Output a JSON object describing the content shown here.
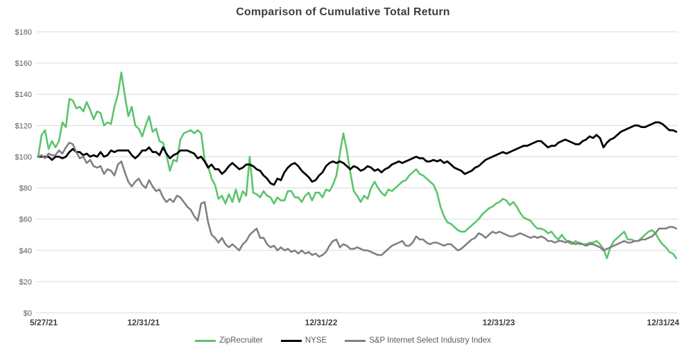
{
  "chart_data": {
    "type": "line",
    "title": "Comparison of Cumulative Total Return",
    "xlabel": "",
    "ylabel": "",
    "ylim": [
      0,
      180
    ],
    "grid": "horizontal",
    "legend_position": "bottom",
    "x_spacing": "uniform time axis, values sampled evenly from 5/27/21 through 12/31/24",
    "y_ticks": [
      {
        "value": 0,
        "label": "$0"
      },
      {
        "value": 20,
        "label": "$20"
      },
      {
        "value": 40,
        "label": "$40"
      },
      {
        "value": 60,
        "label": "$60"
      },
      {
        "value": 80,
        "label": "$80"
      },
      {
        "value": 100,
        "label": "$100"
      },
      {
        "value": 120,
        "label": "$120"
      },
      {
        "value": 140,
        "label": "$140"
      },
      {
        "value": 160,
        "label": "$160"
      },
      {
        "value": 180,
        "label": "$180"
      }
    ],
    "x_ticks": [
      {
        "pos": 0.0,
        "label": "5/27/21"
      },
      {
        "pos": 0.1652,
        "label": "12/31/21"
      },
      {
        "pos": 0.4435,
        "label": "12/31/22"
      },
      {
        "pos": 0.7217,
        "label": "12/31/23"
      },
      {
        "pos": 1.0,
        "label": "12/31/24"
      }
    ],
    "series": [
      {
        "name": "ZipRecruiter",
        "color": "#5BC46A",
        "values": [
          100,
          114,
          117,
          105,
          110,
          106,
          110,
          122,
          119,
          137,
          136,
          131,
          132,
          129,
          135,
          130,
          124,
          129,
          128,
          120,
          122,
          121,
          132,
          140,
          154,
          139,
          126,
          132,
          120,
          118,
          113,
          120,
          126,
          116,
          118,
          110,
          109,
          101,
          91,
          98,
          97,
          111,
          115,
          116,
          117,
          115,
          117,
          115,
          98,
          94,
          86,
          82,
          73,
          75,
          70,
          76,
          71,
          79,
          71,
          78,
          75,
          100,
          77,
          76,
          74,
          78,
          75,
          74,
          70,
          74,
          72,
          72,
          78,
          78,
          74,
          74,
          71,
          75,
          77,
          72,
          77,
          77,
          74,
          79,
          78,
          82,
          88,
          102,
          115,
          104,
          90,
          78,
          75,
          71,
          75,
          73,
          80,
          84,
          80,
          77,
          75,
          79,
          78,
          80,
          82,
          84,
          85,
          88,
          90,
          92,
          89,
          88,
          86,
          84,
          82,
          77,
          68,
          62,
          58,
          57,
          55,
          53,
          52,
          52,
          54,
          56,
          58,
          60,
          63,
          65,
          67,
          68,
          70,
          71,
          73,
          72,
          69,
          71,
          68,
          64,
          61,
          60,
          59,
          56,
          54,
          54,
          53,
          51,
          52,
          49,
          47,
          50,
          47,
          45,
          44,
          46,
          44,
          44,
          44,
          45,
          45,
          46,
          44,
          41,
          35,
          42,
          46,
          48,
          50,
          52,
          47,
          47,
          46,
          46,
          48,
          50,
          52,
          53,
          51,
          47,
          44,
          42,
          39,
          38,
          35
        ]
      },
      {
        "name": "NYSE",
        "color": "#000000",
        "values": [
          100,
          100,
          100,
          100,
          98,
          100,
          100,
          99,
          100,
          103,
          105,
          103,
          103,
          101,
          102,
          100,
          101,
          100,
          103,
          100,
          101,
          104,
          103,
          104,
          104,
          104,
          104,
          101,
          99,
          101,
          104,
          104,
          106,
          103,
          103,
          101,
          106,
          102,
          99,
          101,
          102,
          104,
          104,
          104,
          103,
          102,
          99,
          100,
          97,
          93,
          95,
          92,
          92,
          89,
          91,
          94,
          96,
          94,
          92,
          93,
          95,
          95,
          94,
          92,
          91,
          88,
          86,
          83,
          82,
          86,
          85,
          90,
          93,
          95,
          96,
          94,
          91,
          89,
          87,
          84,
          85,
          88,
          90,
          94,
          96,
          97,
          96,
          97,
          96,
          94,
          92,
          94,
          93,
          91,
          92,
          94,
          93,
          91,
          92,
          90,
          92,
          93,
          95,
          96,
          97,
          96,
          97,
          98,
          99,
          100,
          99,
          99,
          97,
          97,
          98,
          97,
          98,
          96,
          97,
          95,
          93,
          92,
          91,
          89,
          90,
          91,
          93,
          94,
          96,
          98,
          99,
          100,
          101,
          102,
          103,
          102,
          103,
          104,
          105,
          106,
          107,
          107,
          108,
          109,
          110,
          110,
          108,
          106,
          107,
          107,
          109,
          110,
          111,
          110,
          109,
          108,
          108,
          110,
          111,
          113,
          112,
          114,
          112,
          106,
          109,
          111,
          112,
          114,
          116,
          117,
          118,
          119,
          120,
          120,
          119,
          119,
          120,
          121,
          122,
          122,
          121,
          119,
          117,
          117,
          116
        ]
      },
      {
        "name": "S&P Internet Select Industry Index",
        "color": "#808080",
        "values": [
          100,
          101,
          99,
          102,
          101,
          101,
          104,
          102,
          106,
          109,
          108,
          103,
          99,
          100,
          96,
          98,
          94,
          93,
          94,
          89,
          92,
          91,
          88,
          95,
          97,
          90,
          84,
          81,
          84,
          86,
          82,
          80,
          85,
          81,
          78,
          79,
          74,
          71,
          73,
          71,
          75,
          74,
          71,
          68,
          66,
          62,
          59,
          70,
          71,
          58,
          50,
          48,
          45,
          48,
          44,
          42,
          44,
          42,
          40,
          44,
          46,
          50,
          52,
          54,
          48,
          48,
          44,
          42,
          43,
          40,
          42,
          40,
          41,
          39,
          40,
          38,
          40,
          38,
          39,
          37,
          38,
          36,
          37,
          39,
          43,
          46,
          47,
          42,
          44,
          43,
          41,
          41,
          42,
          41,
          40,
          40,
          39,
          38,
          37,
          37,
          39,
          41,
          43,
          44,
          45,
          46,
          43,
          43,
          45,
          49,
          47,
          47,
          45,
          44,
          45,
          45,
          44,
          43,
          44,
          44,
          42,
          40,
          41,
          43,
          45,
          47,
          48,
          51,
          50,
          48,
          50,
          52,
          51,
          52,
          51,
          50,
          49,
          49,
          50,
          51,
          50,
          49,
          48,
          49,
          48,
          49,
          48,
          46,
          46,
          45,
          46,
          46,
          45,
          46,
          45,
          44,
          45,
          44,
          43,
          44,
          44,
          43,
          42,
          40,
          41,
          42,
          43,
          44,
          45,
          46,
          45,
          45,
          46,
          46,
          47,
          47,
          48,
          49,
          51,
          54,
          54,
          54,
          55,
          55,
          54
        ]
      }
    ]
  },
  "colors": {
    "background": "#FFFFFF",
    "gridline": "#D9D9D9",
    "y_axis_label": "#595959",
    "x_axis_label": "#404040",
    "title": "#3F3F3F",
    "legend_text": "#595959"
  }
}
